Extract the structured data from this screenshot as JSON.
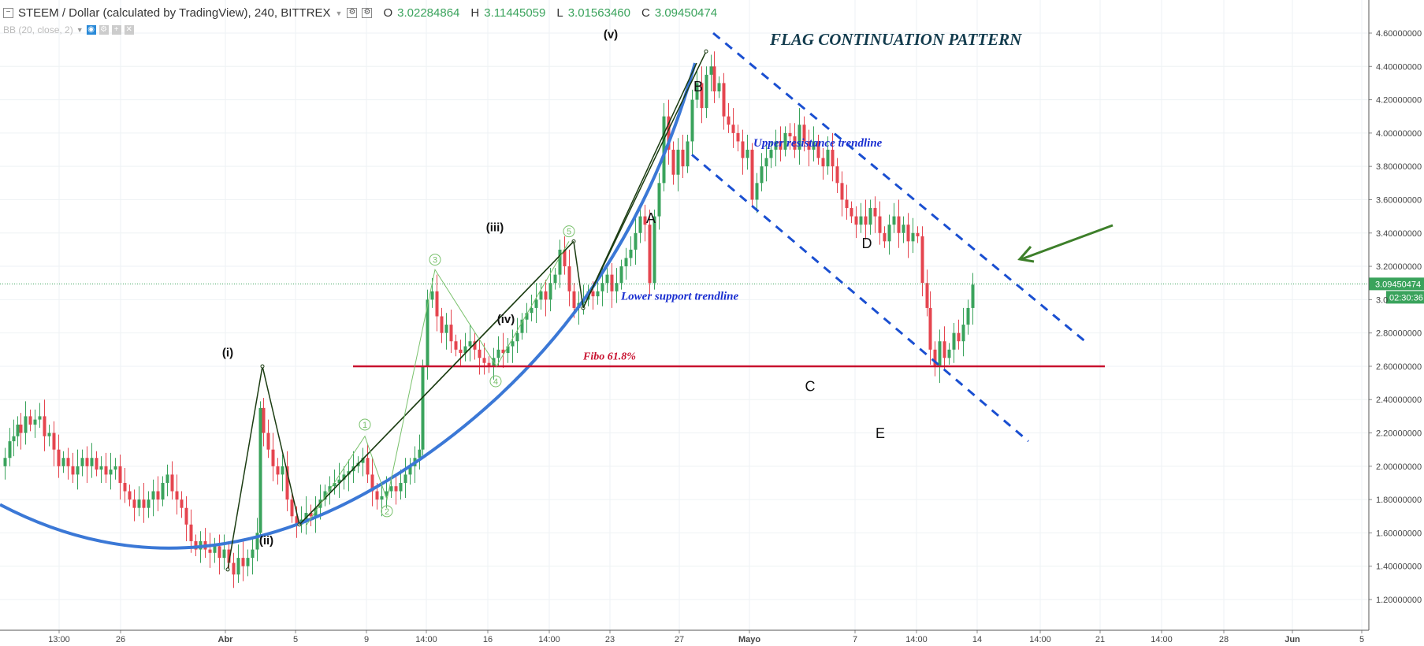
{
  "header": {
    "symbol": "STEEM / Dollar (calculated by TradingView), 240, BITTREX",
    "o_label": "O",
    "o_value": "3.02284864",
    "h_label": "H",
    "h_value": "3.11445059",
    "l_label": "L",
    "l_value": "3.01563460",
    "c_label": "C",
    "c_value": "3.09450474",
    "indicator": "BB (20, close, 2)"
  },
  "colors": {
    "up": "#3aa35c",
    "down": "#e5454f",
    "curve": "#3b78d6",
    "channel": "#1a4fd1",
    "fibo": "#c8102e",
    "wave": "#1b3c12",
    "subwave": "#79c16c",
    "arrow": "#3d7f2a",
    "title": "#123b4d",
    "price_tag": "#3aa35c"
  },
  "chart_data": {
    "type": "candlestick",
    "title": "FLAG CONTINUATION PATTERN",
    "y_ticks": [
      "4.60000000",
      "4.40000000",
      "4.20000000",
      "4.00000000",
      "3.80000000",
      "3.60000000",
      "3.40000000",
      "3.20000000",
      "3.0",
      "2.80000000",
      "2.60000000",
      "2.40000000",
      "2.20000000",
      "2.00000000",
      "1.80000000",
      "1.60000000",
      "1.40000000",
      "1.20000000"
    ],
    "x_ticks": [
      "13:00",
      "26",
      "Abr",
      "5",
      "9",
      "14:00",
      "16",
      "14:00",
      "23",
      "27",
      "Mayo",
      "7",
      "14:00",
      "14",
      "14:00",
      "21",
      "14:00",
      "28",
      "Jun",
      "5"
    ],
    "ylim": [
      1.12,
      4.71
    ],
    "last_price": "3.09450474",
    "countdown": "02:30:36",
    "close_path": [
      [
        0,
        2.0
      ],
      [
        6,
        2.05
      ],
      [
        12,
        2.15
      ],
      [
        17,
        2.18
      ],
      [
        22,
        2.25
      ],
      [
        26,
        2.2
      ],
      [
        32,
        2.3
      ],
      [
        38,
        2.25
      ],
      [
        44,
        2.28
      ],
      [
        50,
        2.3
      ],
      [
        56,
        2.18
      ],
      [
        62,
        2.2
      ],
      [
        68,
        2.1
      ],
      [
        74,
        2.0
      ],
      [
        80,
        2.05
      ],
      [
        86,
        2.0
      ],
      [
        92,
        1.95
      ],
      [
        98,
        2.0
      ],
      [
        104,
        2.05
      ],
      [
        110,
        2.0
      ],
      [
        116,
        2.05
      ],
      [
        122,
        1.98
      ],
      [
        128,
        2.0
      ],
      [
        134,
        1.95
      ],
      [
        140,
        1.98
      ],
      [
        146,
        2.0
      ],
      [
        152,
        1.9
      ],
      [
        158,
        1.85
      ],
      [
        164,
        1.8
      ],
      [
        170,
        1.75
      ],
      [
        176,
        1.8
      ],
      [
        182,
        1.75
      ],
      [
        188,
        1.8
      ],
      [
        194,
        1.85
      ],
      [
        200,
        1.8
      ],
      [
        206,
        1.9
      ],
      [
        212,
        1.95
      ],
      [
        218,
        1.85
      ],
      [
        224,
        1.8
      ],
      [
        230,
        1.75
      ],
      [
        236,
        1.65
      ],
      [
        242,
        1.55
      ],
      [
        248,
        1.5
      ],
      [
        254,
        1.55
      ],
      [
        260,
        1.5
      ],
      [
        266,
        1.48
      ],
      [
        272,
        1.52
      ],
      [
        278,
        1.45
      ],
      [
        284,
        1.5
      ],
      [
        290,
        1.42
      ],
      [
        296,
        1.35
      ],
      [
        302,
        1.45
      ],
      [
        308,
        1.4
      ],
      [
        314,
        1.45
      ],
      [
        320,
        1.5
      ],
      [
        326,
        1.6
      ],
      [
        330,
        2.35
      ],
      [
        334,
        2.2
      ],
      [
        340,
        2.1
      ],
      [
        346,
        2.0
      ],
      [
        352,
        1.95
      ],
      [
        358,
        2.0
      ],
      [
        364,
        1.8
      ],
      [
        370,
        1.7
      ],
      [
        376,
        1.65
      ],
      [
        382,
        1.68
      ],
      [
        388,
        1.72
      ],
      [
        394,
        1.7
      ],
      [
        400,
        1.75
      ],
      [
        406,
        1.8
      ],
      [
        412,
        1.85
      ],
      [
        418,
        1.88
      ],
      [
        424,
        1.9
      ],
      [
        430,
        1.92
      ],
      [
        436,
        1.95
      ],
      [
        442,
        1.97
      ],
      [
        448,
        2.0
      ],
      [
        454,
        2.02
      ],
      [
        460,
        2.05
      ],
      [
        466,
        1.95
      ],
      [
        472,
        1.85
      ],
      [
        478,
        1.8
      ],
      [
        484,
        1.82
      ],
      [
        490,
        1.85
      ],
      [
        496,
        1.88
      ],
      [
        502,
        1.85
      ],
      [
        508,
        1.9
      ],
      [
        514,
        1.95
      ],
      [
        520,
        2.0
      ],
      [
        526,
        2.05
      ],
      [
        532,
        2.1
      ],
      [
        536,
        2.6
      ],
      [
        542,
        3.0
      ],
      [
        548,
        3.05
      ],
      [
        554,
        2.9
      ],
      [
        560,
        2.8
      ],
      [
        566,
        2.85
      ],
      [
        572,
        2.75
      ],
      [
        578,
        2.7
      ],
      [
        584,
        2.68
      ],
      [
        590,
        2.72
      ],
      [
        596,
        2.75
      ],
      [
        602,
        2.7
      ],
      [
        608,
        2.65
      ],
      [
        614,
        2.62
      ],
      [
        620,
        2.6
      ],
      [
        626,
        2.65
      ],
      [
        632,
        2.7
      ],
      [
        638,
        2.68
      ],
      [
        644,
        2.72
      ],
      [
        650,
        2.75
      ],
      [
        656,
        2.8
      ],
      [
        662,
        2.88
      ],
      [
        668,
        2.92
      ],
      [
        674,
        2.95
      ],
      [
        680,
        3.0
      ],
      [
        686,
        3.05
      ],
      [
        692,
        3.0
      ],
      [
        698,
        3.1
      ],
      [
        704,
        3.15
      ],
      [
        710,
        3.3
      ],
      [
        716,
        3.2
      ],
      [
        722,
        3.05
      ],
      [
        728,
        2.95
      ],
      [
        734,
        2.98
      ],
      [
        740,
        3.0
      ],
      [
        746,
        3.05
      ],
      [
        752,
        3.02
      ],
      [
        758,
        3.05
      ],
      [
        764,
        3.1
      ],
      [
        770,
        3.15
      ],
      [
        776,
        3.05
      ],
      [
        782,
        3.1
      ],
      [
        788,
        3.2
      ],
      [
        794,
        3.25
      ],
      [
        800,
        3.3
      ],
      [
        806,
        3.4
      ],
      [
        812,
        3.5
      ],
      [
        818,
        3.45
      ],
      [
        824,
        3.1
      ],
      [
        830,
        3.5
      ],
      [
        836,
        3.7
      ],
      [
        842,
        4.1
      ],
      [
        848,
        3.9
      ],
      [
        854,
        3.75
      ],
      [
        860,
        3.9
      ],
      [
        866,
        3.8
      ],
      [
        872,
        3.95
      ],
      [
        878,
        4.2
      ],
      [
        884,
        4.3
      ],
      [
        890,
        4.15
      ],
      [
        896,
        4.35
      ],
      [
        902,
        4.4
      ],
      [
        906,
        4.25
      ],
      [
        912,
        4.3
      ],
      [
        918,
        4.1
      ],
      [
        924,
        4.05
      ],
      [
        930,
        4.0
      ],
      [
        936,
        3.95
      ],
      [
        942,
        3.85
      ],
      [
        948,
        3.9
      ],
      [
        954,
        3.6
      ],
      [
        960,
        3.7
      ],
      [
        966,
        3.8
      ],
      [
        972,
        3.85
      ],
      [
        978,
        3.9
      ],
      [
        984,
        3.95
      ],
      [
        990,
        3.9
      ],
      [
        996,
        4.0
      ],
      [
        1002,
        3.98
      ],
      [
        1008,
        3.9
      ],
      [
        1014,
        4.05
      ],
      [
        1020,
        3.95
      ],
      [
        1026,
        3.9
      ],
      [
        1032,
        3.95
      ],
      [
        1038,
        3.85
      ],
      [
        1044,
        3.8
      ],
      [
        1050,
        3.9
      ],
      [
        1056,
        3.8
      ],
      [
        1062,
        3.7
      ],
      [
        1068,
        3.6
      ],
      [
        1074,
        3.55
      ],
      [
        1080,
        3.5
      ],
      [
        1086,
        3.45
      ],
      [
        1092,
        3.5
      ],
      [
        1098,
        3.45
      ],
      [
        1104,
        3.55
      ],
      [
        1110,
        3.5
      ],
      [
        1116,
        3.4
      ],
      [
        1122,
        3.35
      ],
      [
        1128,
        3.45
      ],
      [
        1134,
        3.5
      ],
      [
        1140,
        3.4
      ],
      [
        1146,
        3.45
      ],
      [
        1152,
        3.35
      ],
      [
        1158,
        3.4
      ],
      [
        1164,
        3.38
      ],
      [
        1170,
        3.1
      ],
      [
        1176,
        2.95
      ],
      [
        1180,
        2.7
      ],
      [
        1186,
        2.6
      ],
      [
        1192,
        2.75
      ],
      [
        1198,
        2.65
      ],
      [
        1204,
        2.7
      ],
      [
        1210,
        2.8
      ],
      [
        1216,
        2.75
      ],
      [
        1222,
        2.85
      ],
      [
        1228,
        2.95
      ],
      [
        1234,
        3.09
      ]
    ],
    "wave_path_count": "(i)-(v)",
    "labels": [
      {
        "text": "(i)",
        "x": 289,
        "y": 2.66
      },
      {
        "text": "(ii)",
        "x": 338,
        "y": 1.53
      },
      {
        "text": "(iii)",
        "x": 628,
        "y": 3.41
      },
      {
        "text": "(iv)",
        "x": 642,
        "y": 2.86
      },
      {
        "text": "(v)",
        "x": 775,
        "y": 4.57
      },
      {
        "text": "A",
        "x": 826,
        "y": 3.46
      },
      {
        "text": "B",
        "x": 886,
        "y": 4.25
      },
      {
        "text": "C",
        "x": 1028,
        "y": 2.45
      },
      {
        "text": "D",
        "x": 1100,
        "y": 3.31
      },
      {
        "text": "E",
        "x": 1117,
        "y": 2.17
      }
    ],
    "annotations": [
      {
        "text": "Upper resistance trendline",
        "x": 956,
        "y": 3.92
      },
      {
        "text": "Lower support trendline",
        "x": 788,
        "y": 3.0
      },
      {
        "text": "Fibo 61.8%",
        "x": 740,
        "y": 2.64
      }
    ],
    "subwave_labels": [
      "1",
      "2",
      "3",
      "4",
      "5"
    ]
  }
}
